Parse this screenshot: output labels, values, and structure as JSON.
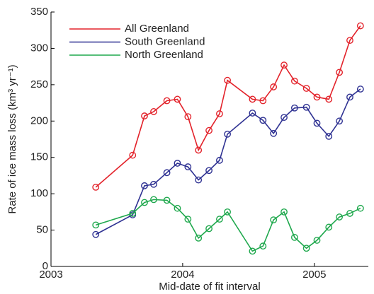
{
  "chart_data": {
    "type": "line",
    "x_label": "Mid-date of fit interval",
    "y_label": "Rate of ice mass loss (km³ yr⁻¹)",
    "x": [
      2003.34,
      2003.62,
      2003.71,
      2003.78,
      2003.88,
      2003.96,
      2004.04,
      2004.12,
      2004.2,
      2004.28,
      2004.34,
      2004.53,
      2004.61,
      2004.69,
      2004.77,
      2004.85,
      2004.94,
      2005.02,
      2005.11,
      2005.19,
      2005.27,
      2005.35
    ],
    "series": [
      {
        "name": "All Greenland",
        "color": "#e3232b",
        "values": [
          109,
          153,
          207,
          213,
          228,
          230,
          206,
          160,
          187,
          210,
          256,
          230,
          228,
          247,
          277,
          255,
          245,
          233,
          230,
          267,
          311,
          331
        ]
      },
      {
        "name": "South Greenland",
        "color": "#2e3192",
        "values": [
          44,
          71,
          111,
          113,
          129,
          142,
          137,
          119,
          132,
          146,
          182,
          211,
          201,
          183,
          205,
          218,
          219,
          197,
          179,
          200,
          233,
          244
        ]
      },
      {
        "name": "North Greenland",
        "color": "#1fa84d",
        "values": [
          57,
          73,
          88,
          92,
          91,
          80,
          65,
          39,
          52,
          65,
          75,
          21,
          28,
          64,
          75,
          40,
          25,
          36,
          54,
          68,
          73,
          80
        ]
      }
    ],
    "xlim": [
      2003,
      2005.41
    ],
    "xticks": [
      2003,
      2004,
      2005
    ],
    "ylim": [
      0,
      350
    ],
    "yticks": [
      0,
      50,
      100,
      150,
      200,
      250,
      300,
      350
    ],
    "legend": "upper left",
    "markers": "circle"
  }
}
